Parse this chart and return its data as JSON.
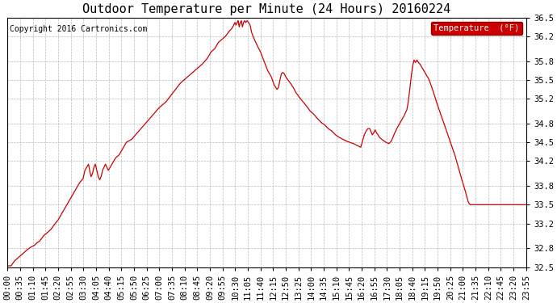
{
  "title": "Outdoor Temperature per Minute (24 Hours) 20160224",
  "copyright": "Copyright 2016 Cartronics.com",
  "legend_label": "Temperature  (°F)",
  "ylim": [
    32.5,
    36.5
  ],
  "yticks": [
    32.5,
    32.8,
    33.2,
    33.5,
    33.8,
    34.2,
    34.5,
    34.8,
    35.2,
    35.5,
    35.8,
    36.2,
    36.5
  ],
  "ytick_labels": [
    "32.5",
    "32.8",
    "33.2",
    "33.5",
    "33.8",
    "34.2",
    "34.5",
    "34.8",
    "35.2",
    "35.5",
    "35.8",
    "36.2",
    "36.5"
  ],
  "line_color": "#cc0000",
  "background_color": "#ffffff",
  "grid_color": "#aaaaaa",
  "title_fontsize": 11,
  "tick_fontsize": 7.5,
  "copyright_fontsize": 7,
  "xtick_labels": [
    "00:00",
    "00:35",
    "01:10",
    "01:45",
    "02:20",
    "02:55",
    "03:30",
    "04:05",
    "04:40",
    "05:15",
    "05:50",
    "06:25",
    "07:00",
    "07:35",
    "08:10",
    "08:45",
    "09:20",
    "09:55",
    "10:30",
    "11:05",
    "11:40",
    "12:15",
    "12:50",
    "13:25",
    "14:00",
    "14:35",
    "15:10",
    "15:45",
    "16:20",
    "16:55",
    "17:30",
    "18:05",
    "18:40",
    "19:15",
    "19:50",
    "20:25",
    "21:00",
    "21:35",
    "22:10",
    "22:45",
    "23:20",
    "23:55"
  ],
  "keypoints": [
    [
      0,
      32.52
    ],
    [
      10,
      32.52
    ],
    [
      20,
      32.6
    ],
    [
      30,
      32.65
    ],
    [
      40,
      32.7
    ],
    [
      55,
      32.78
    ],
    [
      65,
      32.82
    ],
    [
      75,
      32.85
    ],
    [
      80,
      32.88
    ],
    [
      90,
      32.92
    ],
    [
      100,
      33.0
    ],
    [
      110,
      33.05
    ],
    [
      120,
      33.1
    ],
    [
      130,
      33.18
    ],
    [
      140,
      33.25
    ],
    [
      150,
      33.35
    ],
    [
      160,
      33.45
    ],
    [
      170,
      33.55
    ],
    [
      180,
      33.65
    ],
    [
      190,
      33.75
    ],
    [
      200,
      33.85
    ],
    [
      210,
      33.92
    ],
    [
      215,
      34.05
    ],
    [
      220,
      34.1
    ],
    [
      225,
      34.15
    ],
    [
      228,
      34.05
    ],
    [
      232,
      33.95
    ],
    [
      236,
      34.0
    ],
    [
      240,
      34.1
    ],
    [
      244,
      34.15
    ],
    [
      248,
      34.05
    ],
    [
      252,
      33.95
    ],
    [
      256,
      33.9
    ],
    [
      260,
      33.95
    ],
    [
      264,
      34.05
    ],
    [
      268,
      34.1
    ],
    [
      272,
      34.15
    ],
    [
      276,
      34.1
    ],
    [
      280,
      34.05
    ],
    [
      285,
      34.1
    ],
    [
      290,
      34.15
    ],
    [
      295,
      34.2
    ],
    [
      300,
      34.25
    ],
    [
      310,
      34.3
    ],
    [
      320,
      34.4
    ],
    [
      330,
      34.5
    ],
    [
      345,
      34.55
    ],
    [
      360,
      34.65
    ],
    [
      375,
      34.75
    ],
    [
      390,
      34.85
    ],
    [
      405,
      34.95
    ],
    [
      420,
      35.05
    ],
    [
      440,
      35.15
    ],
    [
      460,
      35.3
    ],
    [
      480,
      35.45
    ],
    [
      500,
      35.55
    ],
    [
      520,
      35.65
    ],
    [
      540,
      35.75
    ],
    [
      555,
      35.85
    ],
    [
      565,
      35.95
    ],
    [
      575,
      36.0
    ],
    [
      585,
      36.1
    ],
    [
      595,
      36.15
    ],
    [
      605,
      36.2
    ],
    [
      615,
      36.28
    ],
    [
      622,
      36.32
    ],
    [
      625,
      36.35
    ],
    [
      628,
      36.38
    ],
    [
      631,
      36.42
    ],
    [
      634,
      36.38
    ],
    [
      637,
      36.42
    ],
    [
      640,
      36.45
    ],
    [
      643,
      36.35
    ],
    [
      646,
      36.42
    ],
    [
      649,
      36.45
    ],
    [
      652,
      36.35
    ],
    [
      655,
      36.42
    ],
    [
      658,
      36.45
    ],
    [
      661,
      36.42
    ],
    [
      665,
      36.45
    ],
    [
      669,
      36.42
    ],
    [
      673,
      36.38
    ],
    [
      678,
      36.25
    ],
    [
      685,
      36.15
    ],
    [
      693,
      36.05
    ],
    [
      702,
      35.95
    ],
    [
      712,
      35.8
    ],
    [
      722,
      35.65
    ],
    [
      732,
      35.55
    ],
    [
      740,
      35.42
    ],
    [
      748,
      35.35
    ],
    [
      752,
      35.38
    ],
    [
      756,
      35.5
    ],
    [
      760,
      35.6
    ],
    [
      764,
      35.62
    ],
    [
      768,
      35.6
    ],
    [
      772,
      35.55
    ],
    [
      778,
      35.5
    ],
    [
      785,
      35.45
    ],
    [
      793,
      35.38
    ],
    [
      800,
      35.3
    ],
    [
      810,
      35.22
    ],
    [
      820,
      35.15
    ],
    [
      830,
      35.08
    ],
    [
      840,
      35.0
    ],
    [
      850,
      34.95
    ],
    [
      860,
      34.88
    ],
    [
      870,
      34.82
    ],
    [
      880,
      34.78
    ],
    [
      890,
      34.72
    ],
    [
      900,
      34.68
    ],
    [
      910,
      34.62
    ],
    [
      920,
      34.58
    ],
    [
      930,
      34.55
    ],
    [
      940,
      34.52
    ],
    [
      950,
      34.5
    ],
    [
      960,
      34.48
    ],
    [
      970,
      34.45
    ],
    [
      980,
      34.42
    ],
    [
      985,
      34.52
    ],
    [
      990,
      34.62
    ],
    [
      995,
      34.68
    ],
    [
      1000,
      34.72
    ],
    [
      1005,
      34.72
    ],
    [
      1008,
      34.68
    ],
    [
      1012,
      34.62
    ],
    [
      1016,
      34.65
    ],
    [
      1020,
      34.7
    ],
    [
      1024,
      34.65
    ],
    [
      1028,
      34.62
    ],
    [
      1032,
      34.58
    ],
    [
      1038,
      34.55
    ],
    [
      1045,
      34.52
    ],
    [
      1050,
      34.5
    ],
    [
      1058,
      34.48
    ],
    [
      1065,
      34.52
    ],
    [
      1072,
      34.62
    ],
    [
      1080,
      34.72
    ],
    [
      1090,
      34.82
    ],
    [
      1100,
      34.92
    ],
    [
      1108,
      35.02
    ],
    [
      1112,
      35.15
    ],
    [
      1116,
      35.35
    ],
    [
      1120,
      35.55
    ],
    [
      1124,
      35.72
    ],
    [
      1128,
      35.82
    ],
    [
      1132,
      35.78
    ],
    [
      1136,
      35.82
    ],
    [
      1140,
      35.78
    ],
    [
      1145,
      35.75
    ],
    [
      1150,
      35.7
    ],
    [
      1155,
      35.65
    ],
    [
      1160,
      35.6
    ],
    [
      1165,
      35.55
    ],
    [
      1170,
      35.5
    ],
    [
      1175,
      35.42
    ],
    [
      1182,
      35.3
    ],
    [
      1190,
      35.15
    ],
    [
      1200,
      34.98
    ],
    [
      1210,
      34.82
    ],
    [
      1220,
      34.65
    ],
    [
      1230,
      34.48
    ],
    [
      1240,
      34.32
    ],
    [
      1250,
      34.12
    ],
    [
      1258,
      33.95
    ],
    [
      1265,
      33.82
    ],
    [
      1270,
      33.72
    ],
    [
      1275,
      33.62
    ],
    [
      1278,
      33.55
    ],
    [
      1281,
      33.52
    ],
    [
      1284,
      33.5
    ],
    [
      1290,
      33.5
    ],
    [
      1300,
      33.5
    ],
    [
      1310,
      33.5
    ],
    [
      1320,
      33.5
    ],
    [
      1330,
      33.5
    ],
    [
      1340,
      33.5
    ],
    [
      1350,
      33.5
    ],
    [
      1360,
      33.5
    ],
    [
      1370,
      33.5
    ],
    [
      1380,
      33.5
    ],
    [
      1390,
      33.5
    ],
    [
      1400,
      33.5
    ],
    [
      1410,
      33.5
    ],
    [
      1420,
      33.5
    ],
    [
      1430,
      33.5
    ],
    [
      1439,
      33.5
    ]
  ]
}
